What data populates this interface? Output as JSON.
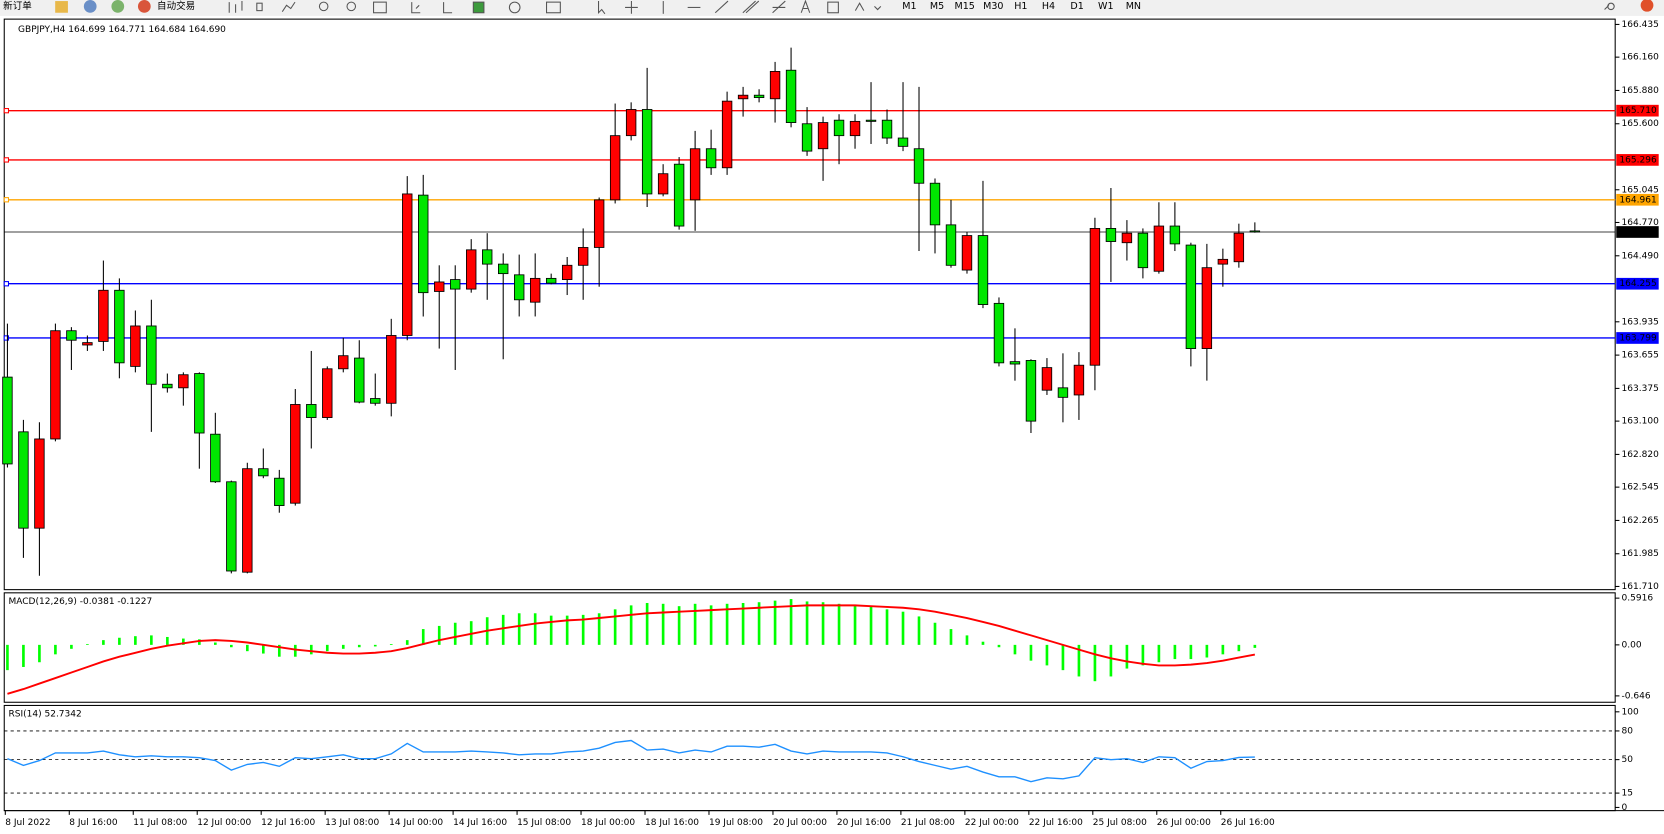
{
  "toolbar": {
    "new_order": "新订单",
    "auto_trading": "自动交易",
    "periods": [
      "M1",
      "M5",
      "M15",
      "M30",
      "H1",
      "H4",
      "D1",
      "W1",
      "MN"
    ]
  },
  "chart_data": [
    {
      "type": "candlestick",
      "title": "GBPJPY,H4  164.699 164.771 164.684 164.690",
      "categories": [
        "8 Jul 2022",
        null,
        null,
        null,
        "8 Jul 16:00",
        null,
        null,
        null,
        "11 Jul 08:00",
        null,
        null,
        null,
        "12 Jul 00:00",
        null,
        null,
        null,
        "12 Jul 16:00",
        null,
        null,
        null,
        "13 Jul 08:00",
        null,
        null,
        null,
        "14 Jul 00:00",
        null,
        null,
        null,
        "14 Jul 16:00",
        null,
        null,
        null,
        "15 Jul 08:00",
        null,
        null,
        null,
        "18 Jul 00:00",
        null,
        null,
        null,
        "18 Jul 16:00",
        null,
        null,
        null,
        "19 Jul 08:00",
        null,
        null,
        null,
        "20 Jul 00:00",
        null,
        null,
        null,
        "20 Jul 16:00",
        null,
        null,
        null,
        "21 Jul 08:00",
        null,
        null,
        null,
        "22 Jul 00:00",
        null,
        null,
        null,
        "22 Jul 16:00",
        null,
        null,
        null,
        "25 Jul 08:00",
        null,
        null,
        null,
        "26 Jul 00:00",
        null,
        null,
        null,
        "26 Jul 16:00",
        null,
        null
      ],
      "open": [
        163.47,
        163.01,
        162.2,
        162.95,
        163.86,
        163.74,
        163.77,
        164.2,
        163.56,
        163.9,
        163.41,
        163.38,
        163.5,
        162.99,
        162.59,
        161.83,
        162.7,
        162.62,
        162.41,
        163.24,
        163.13,
        163.54,
        163.63,
        163.29,
        163.25,
        163.82,
        165.0,
        164.19,
        164.29,
        164.21,
        164.54,
        164.42,
        164.33,
        164.1,
        164.3,
        164.29,
        164.41,
        164.56,
        164.96,
        165.5,
        165.72,
        165.01,
        165.26,
        164.96,
        165.39,
        165.23,
        165.81,
        165.84,
        165.81,
        166.05,
        165.6,
        165.39,
        165.63,
        165.5,
        165.63,
        165.63,
        165.48,
        165.39,
        165.1,
        164.75,
        164.37,
        164.66,
        164.09,
        163.6,
        163.61,
        163.36,
        163.38,
        163.32,
        163.57,
        164.72,
        164.6,
        164.68,
        164.36,
        164.74,
        164.58,
        163.71,
        164.42,
        164.44,
        164.699
      ],
      "high": [
        163.92,
        163.11,
        163.09,
        163.92,
        163.89,
        163.82,
        164.45,
        164.3,
        164.03,
        164.12,
        163.5,
        163.51,
        163.51,
        163.17,
        162.6,
        162.75,
        162.87,
        162.69,
        163.37,
        163.69,
        163.56,
        163.8,
        163.78,
        163.5,
        163.96,
        165.16,
        165.17,
        164.41,
        164.41,
        164.63,
        164.68,
        164.51,
        164.5,
        164.51,
        164.34,
        164.48,
        164.72,
        164.98,
        165.77,
        165.78,
        166.07,
        165.26,
        165.32,
        165.54,
        165.55,
        165.87,
        165.91,
        165.89,
        166.12,
        166.24,
        165.74,
        165.66,
        165.68,
        165.68,
        165.95,
        165.72,
        165.95,
        165.91,
        165.14,
        164.96,
        164.69,
        165.12,
        164.14,
        163.88,
        163.62,
        163.63,
        163.67,
        163.68,
        164.81,
        165.06,
        164.79,
        164.72,
        164.94,
        164.94,
        164.6,
        164.59,
        164.55,
        164.76,
        164.771
      ],
      "low": [
        162.71,
        161.95,
        161.8,
        162.93,
        163.53,
        163.69,
        163.69,
        163.46,
        163.51,
        163.01,
        163.34,
        163.23,
        162.7,
        162.58,
        161.82,
        161.82,
        162.62,
        162.33,
        162.39,
        162.87,
        163.11,
        163.51,
        163.25,
        163.23,
        163.14,
        163.78,
        163.98,
        163.71,
        163.53,
        164.18,
        164.12,
        163.62,
        163.98,
        163.98,
        164.25,
        164.16,
        164.12,
        164.23,
        164.93,
        165.46,
        164.9,
        164.99,
        164.71,
        164.7,
        165.17,
        165.17,
        165.66,
        165.78,
        165.61,
        165.57,
        165.33,
        165.12,
        165.26,
        165.39,
        165.43,
        165.43,
        165.37,
        164.53,
        164.51,
        164.39,
        164.34,
        164.05,
        163.56,
        163.44,
        163.0,
        163.32,
        163.09,
        163.11,
        163.36,
        164.27,
        164.45,
        164.3,
        164.34,
        164.53,
        163.56,
        163.44,
        164.23,
        164.39,
        164.684
      ],
      "close": [
        162.74,
        162.2,
        162.95,
        163.86,
        163.78,
        163.76,
        164.2,
        163.59,
        163.9,
        163.41,
        163.38,
        163.49,
        163.0,
        162.59,
        161.84,
        162.7,
        162.64,
        162.39,
        163.24,
        163.13,
        163.54,
        163.65,
        163.26,
        163.25,
        163.82,
        165.01,
        164.18,
        164.27,
        164.21,
        164.54,
        164.42,
        164.34,
        164.12,
        164.3,
        164.26,
        164.41,
        164.56,
        164.96,
        165.5,
        165.72,
        165.01,
        165.18,
        164.74,
        165.39,
        165.23,
        165.79,
        165.84,
        165.82,
        166.04,
        165.61,
        165.37,
        165.61,
        165.5,
        165.62,
        165.62,
        165.48,
        165.41,
        165.1,
        164.75,
        164.41,
        164.66,
        164.08,
        163.59,
        163.58,
        163.1,
        163.55,
        163.3,
        163.57,
        164.72,
        164.61,
        164.68,
        164.39,
        164.74,
        164.59,
        163.71,
        164.39,
        164.46,
        164.68,
        164.69
      ],
      "up_color": "#ff0000",
      "down_color": "#00e600",
      "ylim": [
        161.71,
        166.435
      ],
      "yticks": [
        166.435,
        {
          "value": 166.16,
          "label": "166.160"
        },
        {
          "value": 165.88,
          "label": "165.880"
        },
        {
          "value": 165.6,
          "label": "165.600"
        },
        165.045,
        {
          "value": 164.77,
          "label": "164.770"
        },
        {
          "value": 164.49,
          "label": "164.490"
        },
        163.935,
        163.655,
        163.375,
        {
          "value": 163.1,
          "label": "163.100"
        },
        {
          "value": 162.82,
          "label": "162.820"
        },
        162.545,
        162.265,
        161.985,
        {
          "value": 161.71,
          "label": "161.710"
        }
      ],
      "hlines": [
        {
          "value": 165.71,
          "label": "165.710",
          "color": "#ff0000"
        },
        {
          "value": 165.296,
          "color": "#ff0000"
        },
        {
          "value": 164.961,
          "color": "#ffa500"
        },
        {
          "value": 164.69,
          "label": "164.690",
          "color": "#000000"
        },
        {
          "value": 164.255,
          "color": "#0000ff"
        },
        {
          "value": 163.799,
          "color": "#0000ff"
        }
      ],
      "grid": false
    },
    {
      "type": "macd",
      "title": "MACD(12,26,9) -0.0381 -0.1227",
      "series": [
        {
          "kind": "bar",
          "color": "#00ff00",
          "values": [
            -0.32,
            -0.28,
            -0.22,
            -0.12,
            -0.05,
            0.01,
            0.06,
            0.09,
            0.11,
            0.12,
            0.1,
            0.08,
            0.07,
            0.03,
            -0.03,
            -0.08,
            -0.11,
            -0.15,
            -0.15,
            -0.12,
            -0.08,
            -0.05,
            -0.03,
            -0.02,
            0.01,
            0.06,
            0.2,
            0.24,
            0.28,
            0.3,
            0.35,
            0.38,
            0.4,
            0.4,
            0.37,
            0.37,
            0.38,
            0.4,
            0.45,
            0.5,
            0.53,
            0.52,
            0.49,
            0.52,
            0.5,
            0.52,
            0.53,
            0.54,
            0.56,
            0.58,
            0.55,
            0.54,
            0.52,
            0.5,
            0.48,
            0.45,
            0.42,
            0.36,
            0.28,
            0.2,
            0.12,
            0.04,
            -0.03,
            -0.12,
            -0.2,
            -0.26,
            -0.32,
            -0.4,
            -0.46,
            -0.4,
            -0.3,
            -0.26,
            -0.22,
            -0.18,
            -0.18,
            -0.16,
            -0.12,
            -0.08,
            -0.0381
          ]
        },
        {
          "kind": "line",
          "color": "#ff0000",
          "values": [
            -0.62,
            -0.56,
            -0.49,
            -0.42,
            -0.35,
            -0.28,
            -0.21,
            -0.15,
            -0.1,
            -0.05,
            -0.01,
            0.02,
            0.05,
            0.06,
            0.05,
            0.03,
            0.0,
            -0.03,
            -0.06,
            -0.08,
            -0.1,
            -0.11,
            -0.11,
            -0.1,
            -0.08,
            -0.04,
            0.01,
            0.06,
            0.1,
            0.14,
            0.18,
            0.21,
            0.24,
            0.27,
            0.29,
            0.31,
            0.32,
            0.34,
            0.36,
            0.38,
            0.4,
            0.41,
            0.42,
            0.43,
            0.44,
            0.45,
            0.46,
            0.47,
            0.48,
            0.49,
            0.5,
            0.5,
            0.5,
            0.5,
            0.49,
            0.48,
            0.47,
            0.45,
            0.42,
            0.38,
            0.34,
            0.29,
            0.24,
            0.18,
            0.12,
            0.06,
            0.0,
            -0.06,
            -0.12,
            -0.17,
            -0.21,
            -0.24,
            -0.26,
            -0.26,
            -0.25,
            -0.23,
            -0.2,
            -0.16,
            -0.1227
          ]
        }
      ],
      "ylim": [
        -0.646,
        0.5916
      ],
      "yticks": [
        0.5916,
        {
          "value": 0,
          "label": "0.00"
        },
        -0.646
      ],
      "grid": false
    },
    {
      "type": "line",
      "title": "RSI(14) 52.7342",
      "series": [
        {
          "color": "#1e90ff",
          "values": [
            51,
            44,
            49,
            57,
            57,
            57,
            59,
            55,
            53,
            54,
            53,
            53,
            52,
            49,
            39,
            45,
            47,
            43,
            52,
            51,
            53,
            55,
            51,
            51,
            56,
            67,
            58,
            58,
            58,
            59,
            58,
            57,
            55,
            56,
            56,
            58,
            59,
            62,
            68,
            70,
            60,
            61,
            57,
            60,
            58,
            64,
            64,
            63,
            66,
            59,
            56,
            59,
            58,
            58,
            58,
            57,
            53,
            48,
            44,
            40,
            43,
            37,
            32,
            32,
            27,
            31,
            30,
            33,
            52,
            50,
            51,
            47,
            53,
            52,
            41,
            48,
            49,
            52.3,
            52.7342
          ]
        }
      ],
      "ylim": [
        0,
        100
      ],
      "yticks": [
        100,
        80,
        50,
        15,
        0
      ],
      "grid": true
    }
  ]
}
